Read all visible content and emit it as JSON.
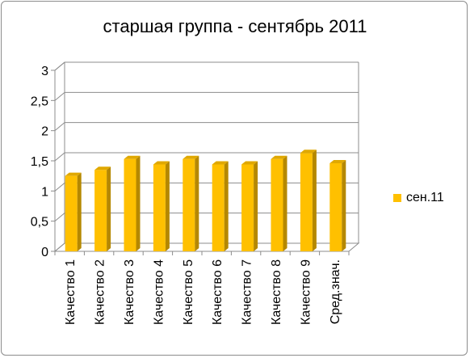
{
  "chart_data": {
    "type": "bar",
    "title": "старшая группа - сентябрь 2011",
    "categories": [
      "Качество 1",
      "Качество 2",
      "Качество 3",
      "Качество 4",
      "Качество 5",
      "Качество 6",
      "Качество 7",
      "Качество 8",
      "Качество 9",
      "Сред.знач."
    ],
    "series": [
      {
        "name": "сен.11",
        "values": [
          1.25,
          1.35,
          1.53,
          1.44,
          1.53,
          1.44,
          1.44,
          1.53,
          1.63,
          1.46
        ]
      }
    ],
    "ylim": [
      0,
      3
    ],
    "yticks": [
      0,
      0.5,
      1,
      1.5,
      2,
      2.5,
      3
    ],
    "ytick_labels": [
      "0",
      "0,5",
      "1",
      "1,5",
      "2",
      "2,5",
      "3"
    ],
    "xlabel": "",
    "ylabel": "",
    "grid": true,
    "legend_position": "right",
    "colors": {
      "bar_front": "#ffc000",
      "bar_side": "#b58800",
      "bar_top": "#e0a800",
      "grid": "#8c8c8c",
      "axis": "#8c8c8c"
    },
    "style": "3d-column"
  }
}
